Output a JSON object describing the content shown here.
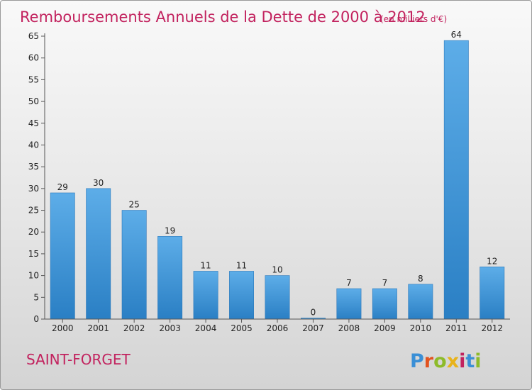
{
  "chart_data": {
    "type": "bar",
    "title": "Remboursements Annuels de la Dette de 2000 à 2012",
    "unit_label": "(en milliers d'€)",
    "categories": [
      "2000",
      "2001",
      "2002",
      "2003",
      "2004",
      "2005",
      "2006",
      "2007",
      "2008",
      "2009",
      "2010",
      "2011",
      "2012"
    ],
    "values": [
      29,
      30,
      25,
      19,
      11,
      11,
      10,
      0,
      7,
      7,
      8,
      64,
      12
    ],
    "ylim": [
      0,
      65
    ],
    "yticks": [
      0,
      5,
      10,
      15,
      20,
      25,
      30,
      35,
      40,
      45,
      50,
      55,
      60,
      65
    ],
    "xlabel": "",
    "ylabel": "",
    "grid": false,
    "bar_color_light": "#5dade8",
    "bar_color_dark": "#2a7fc4"
  },
  "commune": "SAINT-FORGET",
  "logo": {
    "text": "Proxiti",
    "letter_colors": [
      "#3a8fd6",
      "#e2531f",
      "#8dbb2a",
      "#e8b31b",
      "#c2225e",
      "#3a8fd6",
      "#8dbb2a"
    ]
  },
  "colors": {
    "title": "#c2225e",
    "axis": "#555555"
  }
}
